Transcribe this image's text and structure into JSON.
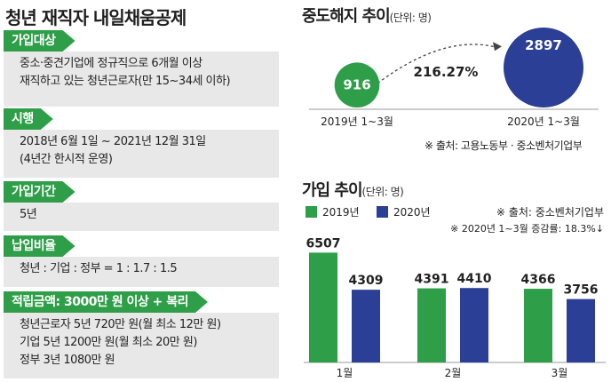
{
  "main_title": "청년 재직자 내일채움공제",
  "sections": [
    {
      "label": "가입대상",
      "lines": [
        "중소·중견기업에 정규직으로 6개월 이상",
        "재직하고 있는 청년근로자(만 15~34세 이하)"
      ]
    },
    {
      "label": "시행",
      "lines": [
        "2018년 6월 1일 ~ 2021년 12월 31일",
        "(4년간 한시적 운영)"
      ]
    },
    {
      "label": "가입기간",
      "lines": [
        "5년"
      ]
    },
    {
      "label": "납입비율",
      "lines": [
        "청년 : 기업 : 정부 = 1 : 1.7 : 1.5"
      ]
    },
    {
      "label": "적립금액: 3000만 원 이상 + 복리",
      "lines": [
        "청년근로자 5년 720만 원(월 최소 12만 원)",
        "기업 5년 1200만 원(월 최소 20만 원)",
        "정부 3년 1080만 원"
      ]
    }
  ],
  "dropout": {
    "title": "중도해지 추이",
    "unit": "(단위: 명)",
    "source": "※ 출처: 고용노동부 · 중소벤처기업부",
    "change_label": "216.27%"
  },
  "enroll": {
    "title": "가입 추이",
    "unit": "(단위: 명)",
    "source": "※ 출처: 중소벤처기업부",
    "note": "※ 2020년 1~3월 증감률: 18.3%↓"
  },
  "colors": {
    "green": "#2e9e48",
    "navy": "#2b3f96",
    "box_gray": "#e8e8e8",
    "axis": "#999999"
  },
  "chart_data": [
    {
      "type": "bubble",
      "title": "중도해지 추이",
      "unit": "명",
      "categories": [
        "2019년 1~3월",
        "2020년 1~3월"
      ],
      "values": [
        916,
        2897
      ]
    },
    {
      "type": "bar",
      "title": "가입 추이",
      "unit": "명",
      "categories": [
        "1월",
        "2월",
        "3월"
      ],
      "series": [
        {
          "name": "2019년",
          "values": [
            6507,
            4391,
            4366
          ]
        },
        {
          "name": "2020년",
          "values": [
            4309,
            4410,
            3756
          ]
        }
      ],
      "ylim": [
        0,
        7000
      ],
      "legend": "top-left"
    }
  ]
}
